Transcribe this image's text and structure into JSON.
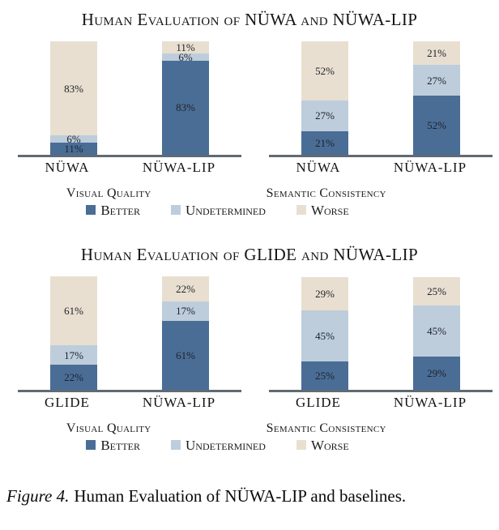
{
  "palette": {
    "better": "#4a6d96",
    "undetermined": "#bdcddc",
    "worse": "#e8dfd0",
    "axis": "#5f6a74"
  },
  "legend": [
    "Better",
    "Undetermined",
    "Worse"
  ],
  "groups": [
    {
      "title": "Human Evaluation of NÜWA and NÜWA-LIP",
      "panels": [
        {
          "caption": "Visual Quality",
          "bars": [
            {
              "label": "NÜWA",
              "segments": [
                {
                  "key": "better",
                  "pct": 11,
                  "label": "11%"
                },
                {
                  "key": "undetermined",
                  "pct": 6,
                  "label": "6%"
                },
                {
                  "key": "worse",
                  "pct": 83,
                  "label": "83%"
                }
              ]
            },
            {
              "label": "NÜWA-LIP",
              "segments": [
                {
                  "key": "better",
                  "pct": 83,
                  "label": "83%"
                },
                {
                  "key": "undetermined",
                  "pct": 6,
                  "label": "6%"
                },
                {
                  "key": "worse",
                  "pct": 11,
                  "label": "11%"
                }
              ]
            }
          ]
        },
        {
          "caption": "Semantic Consistency",
          "bars": [
            {
              "label": "NÜWA",
              "segments": [
                {
                  "key": "better",
                  "pct": 21,
                  "label": "21%"
                },
                {
                  "key": "undetermined",
                  "pct": 27,
                  "label": "27%"
                },
                {
                  "key": "worse",
                  "pct": 52,
                  "label": "52%"
                }
              ]
            },
            {
              "label": "NÜWA-LIP",
              "segments": [
                {
                  "key": "better",
                  "pct": 52,
                  "label": "52%"
                },
                {
                  "key": "undetermined",
                  "pct": 27,
                  "label": "27%"
                },
                {
                  "key": "worse",
                  "pct": 21,
                  "label": "21%"
                }
              ]
            }
          ]
        }
      ]
    },
    {
      "title": "Human Evaluation of GLIDE and NÜWA-LIP",
      "panels": [
        {
          "caption": "Visual Quality",
          "bars": [
            {
              "label": "GLIDE",
              "segments": [
                {
                  "key": "better",
                  "pct": 22,
                  "label": "22%"
                },
                {
                  "key": "undetermined",
                  "pct": 17,
                  "label": "17%"
                },
                {
                  "key": "worse",
                  "pct": 61,
                  "label": "61%"
                }
              ]
            },
            {
              "label": "NÜWA-LIP",
              "segments": [
                {
                  "key": "better",
                  "pct": 61,
                  "label": "61%"
                },
                {
                  "key": "undetermined",
                  "pct": 17,
                  "label": "17%"
                },
                {
                  "key": "worse",
                  "pct": 22,
                  "label": "22%"
                }
              ]
            }
          ]
        },
        {
          "caption": "Semantic Consistency",
          "bars": [
            {
              "label": "GLIDE",
              "segments": [
                {
                  "key": "better",
                  "pct": 25,
                  "label": "25%"
                },
                {
                  "key": "undetermined",
                  "pct": 45,
                  "label": "45%"
                },
                {
                  "key": "worse",
                  "pct": 29,
                  "label": "29%"
                }
              ]
            },
            {
              "label": "NÜWA-LIP",
              "segments": [
                {
                  "key": "better",
                  "pct": 29,
                  "label": "29%"
                },
                {
                  "key": "undetermined",
                  "pct": 45,
                  "label": "45%"
                },
                {
                  "key": "worse",
                  "pct": 25,
                  "label": "25%"
                }
              ]
            }
          ]
        }
      ]
    }
  ],
  "caption": {
    "prefix": "Figure 4.",
    "text": "Human Evaluation of NÜWA-LIP and baselines."
  },
  "chart_data": [
    {
      "type": "bar",
      "stacked": true,
      "title": "Human Evaluation of NÜWA and NÜWA-LIP — Visual Quality",
      "categories": [
        "NÜWA",
        "NÜWA-LIP"
      ],
      "series": [
        {
          "name": "Better",
          "values": [
            11,
            83
          ]
        },
        {
          "name": "Undetermined",
          "values": [
            6,
            6
          ]
        },
        {
          "name": "Worse",
          "values": [
            83,
            11
          ]
        }
      ],
      "unit": "%",
      "ylim": [
        0,
        100
      ],
      "grid": false,
      "legend_position": "bottom"
    },
    {
      "type": "bar",
      "stacked": true,
      "title": "Human Evaluation of NÜWA and NÜWA-LIP — Semantic Consistency",
      "categories": [
        "NÜWA",
        "NÜWA-LIP"
      ],
      "series": [
        {
          "name": "Better",
          "values": [
            21,
            52
          ]
        },
        {
          "name": "Undetermined",
          "values": [
            27,
            27
          ]
        },
        {
          "name": "Worse",
          "values": [
            52,
            21
          ]
        }
      ],
      "unit": "%",
      "ylim": [
        0,
        100
      ],
      "grid": false,
      "legend_position": "bottom"
    },
    {
      "type": "bar",
      "stacked": true,
      "title": "Human Evaluation of GLIDE and NÜWA-LIP — Visual Quality",
      "categories": [
        "GLIDE",
        "NÜWA-LIP"
      ],
      "series": [
        {
          "name": "Better",
          "values": [
            22,
            61
          ]
        },
        {
          "name": "Undetermined",
          "values": [
            17,
            17
          ]
        },
        {
          "name": "Worse",
          "values": [
            61,
            22
          ]
        }
      ],
      "unit": "%",
      "ylim": [
        0,
        100
      ],
      "grid": false,
      "legend_position": "bottom"
    },
    {
      "type": "bar",
      "stacked": true,
      "title": "Human Evaluation of GLIDE and NÜWA-LIP — Semantic Consistency",
      "categories": [
        "GLIDE",
        "NÜWA-LIP"
      ],
      "series": [
        {
          "name": "Better",
          "values": [
            25,
            29
          ]
        },
        {
          "name": "Undetermined",
          "values": [
            45,
            45
          ]
        },
        {
          "name": "Worse",
          "values": [
            29,
            25
          ]
        }
      ],
      "unit": "%",
      "ylim": [
        0,
        100
      ],
      "grid": false,
      "legend_position": "bottom"
    }
  ]
}
